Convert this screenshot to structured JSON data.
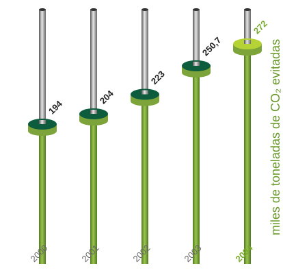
{
  "chart_data": {
    "type": "slider",
    "y_label": "miles de toneladas de CO₂ evitadas",
    "categories": [
      "2000",
      "2001",
      "2002",
      "2003",
      "2004"
    ],
    "values": [
      194,
      204,
      223,
      250.7,
      272
    ],
    "value_labels": [
      "194",
      "204",
      "223",
      "250,7",
      "272"
    ],
    "colors": [
      "#0d5c3e",
      "#0d5c3e",
      "#0d5c3e",
      "#0d5c3e",
      "#b5d334"
    ],
    "label_colors": [
      "#222222",
      "#222222",
      "#222222",
      "#222222",
      "#7aac2c"
    ]
  }
}
